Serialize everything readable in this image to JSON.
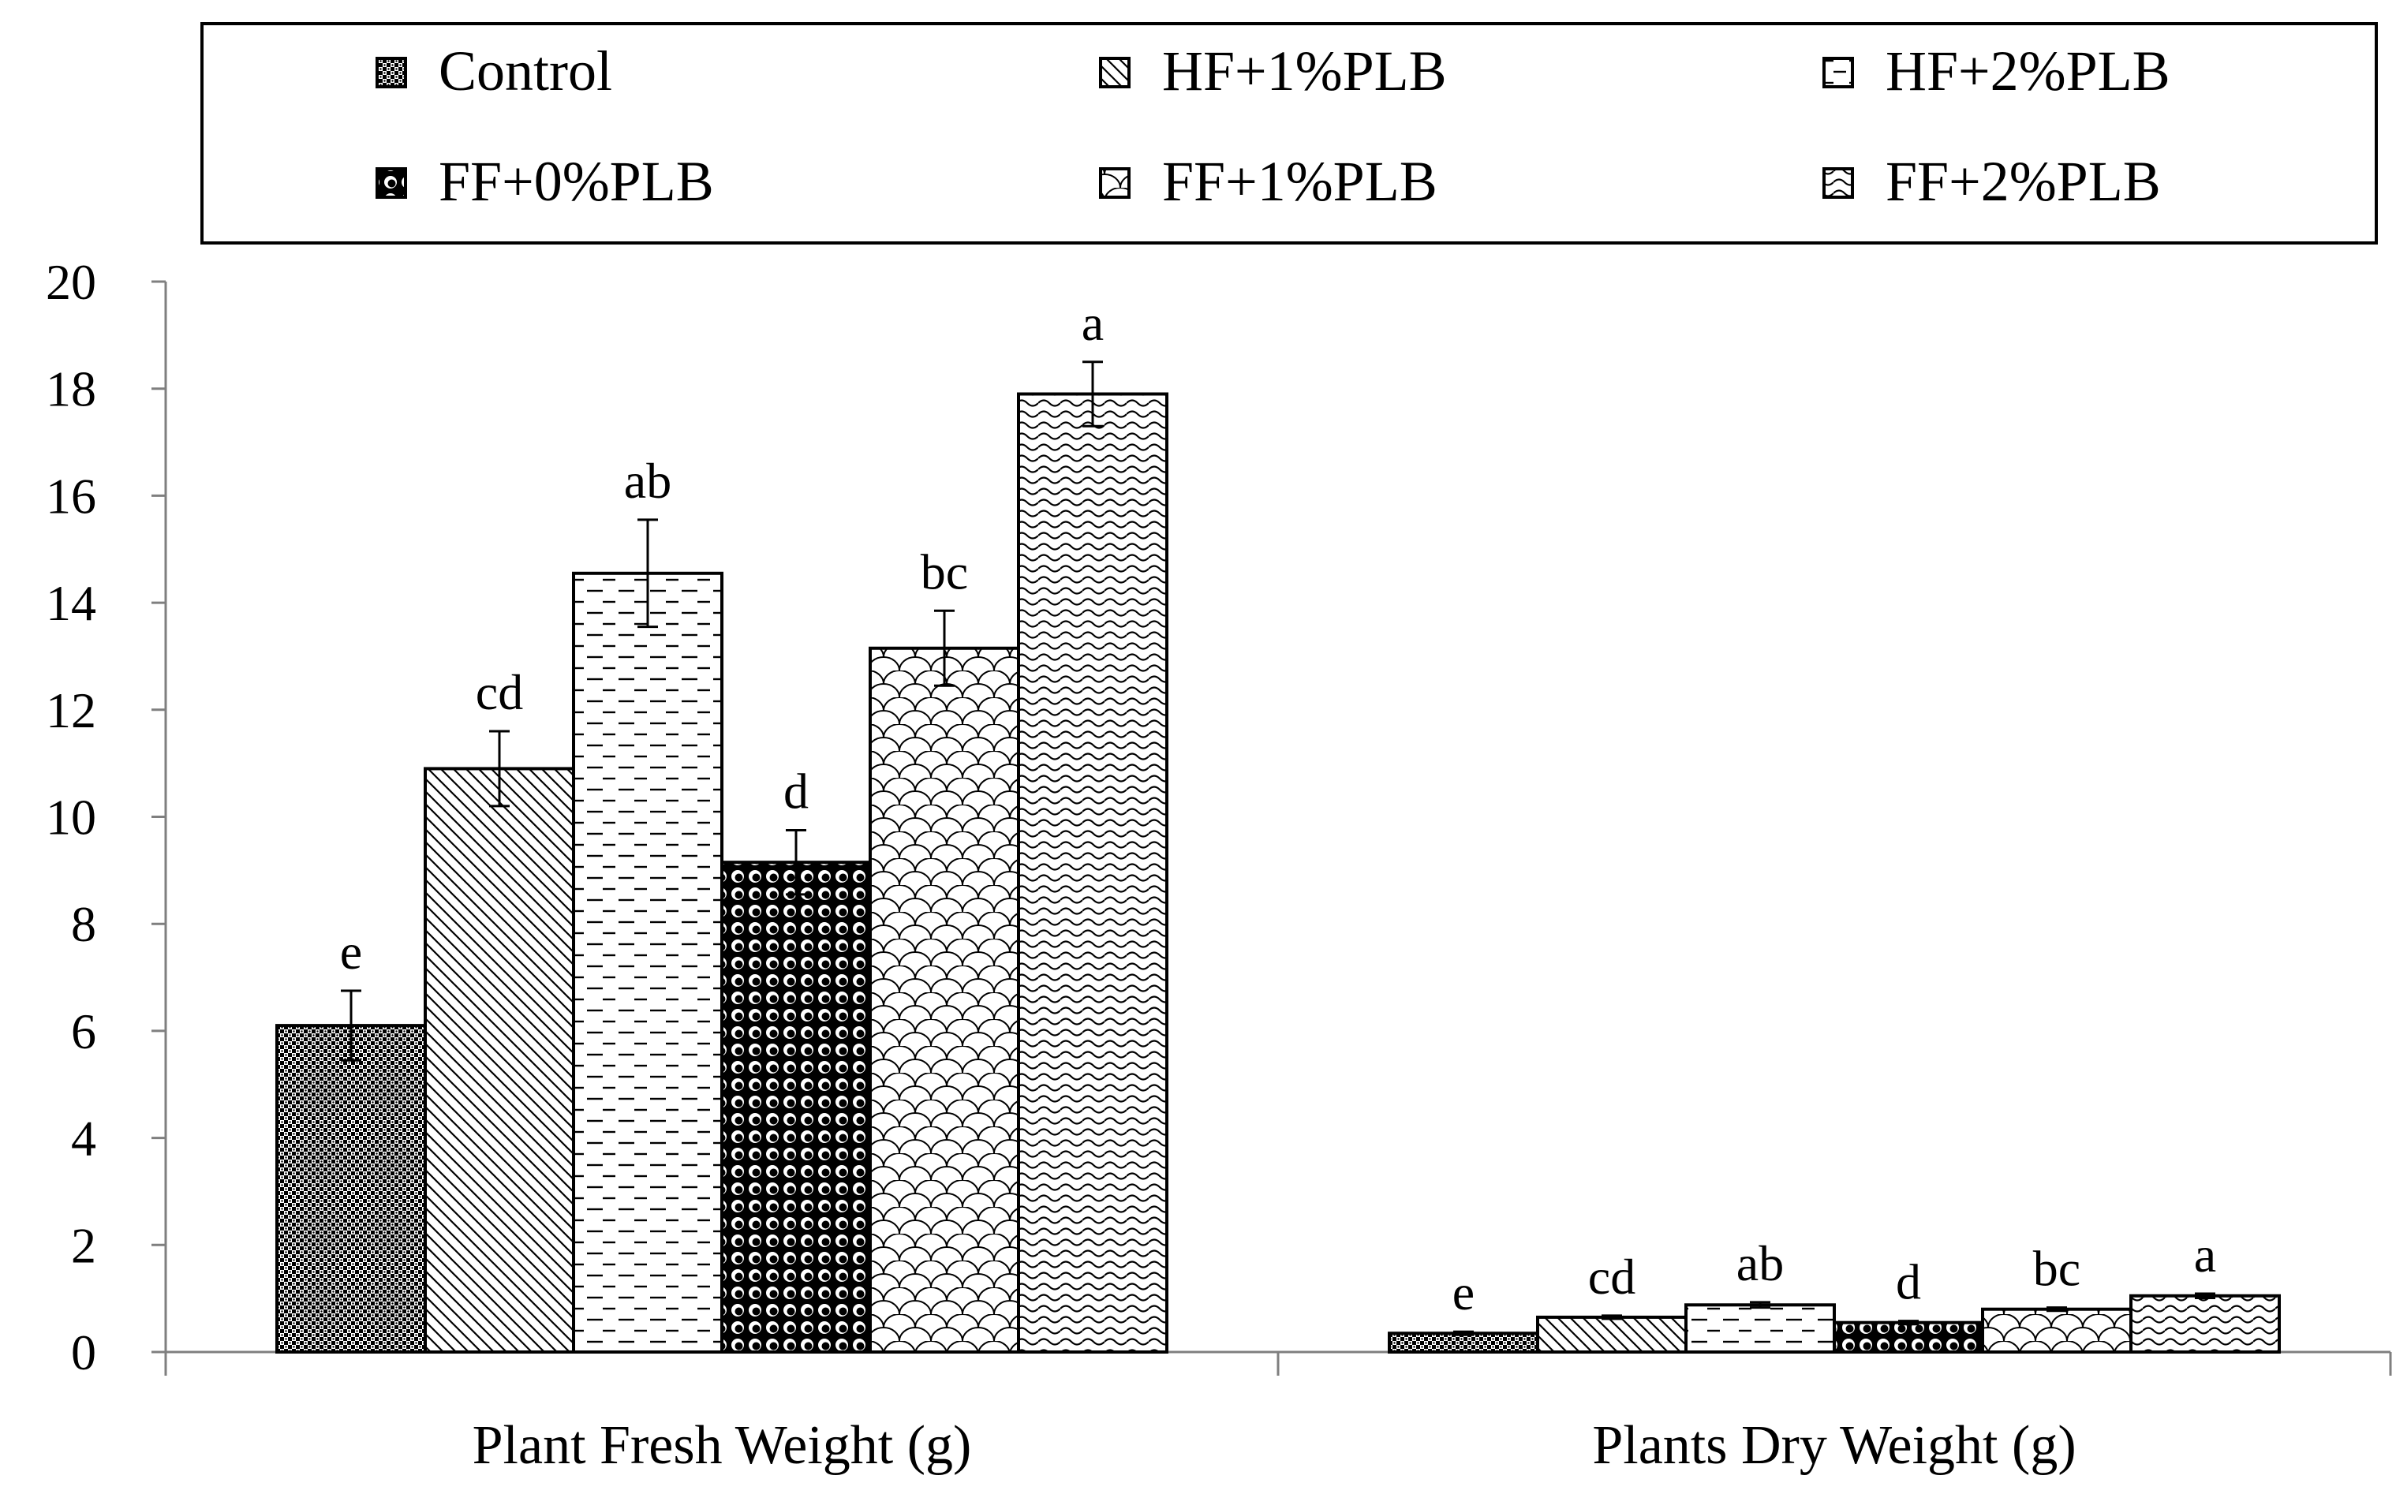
{
  "chart_data": {
    "type": "bar",
    "title": "",
    "xlabel": "",
    "ylabel": "",
    "ylim": [
      0,
      20
    ],
    "y_ticks": [
      0,
      2,
      4,
      6,
      8,
      10,
      12,
      14,
      16,
      18,
      20
    ],
    "categories": [
      "Plant Fresh Weight (g)",
      "Plants Dry Weight (g)"
    ],
    "legend_position": "top",
    "series": [
      {
        "name": "Control",
        "values": [
          6.1,
          0.35
        ],
        "errors": [
          0.65,
          0.03
        ],
        "letters": [
          "e",
          "e"
        ],
        "pattern": "control"
      },
      {
        "name": "HF+1%PLB",
        "values": [
          10.9,
          0.65
        ],
        "errors": [
          0.7,
          0.03
        ],
        "letters": [
          "cd",
          "cd"
        ],
        "pattern": "diag"
      },
      {
        "name": "HF+2%PLB",
        "values": [
          14.55,
          0.88
        ],
        "errors": [
          1.0,
          0.05
        ],
        "letters": [
          "ab",
          "ab"
        ],
        "pattern": "dash"
      },
      {
        "name": "FF+0%PLB",
        "values": [
          9.15,
          0.55
        ],
        "errors": [
          0.6,
          0.03
        ],
        "letters": [
          "d",
          "d"
        ],
        "pattern": "sphere"
      },
      {
        "name": "FF+1%PLB",
        "values": [
          13.15,
          0.8
        ],
        "errors": [
          0.7,
          0.03
        ],
        "letters": [
          "bc",
          "bc"
        ],
        "pattern": "scale"
      },
      {
        "name": "FF+2%PLB",
        "values": [
          17.9,
          1.05
        ],
        "errors": [
          0.6,
          0.04
        ],
        "letters": [
          "a",
          "a"
        ],
        "pattern": "wave"
      }
    ]
  }
}
